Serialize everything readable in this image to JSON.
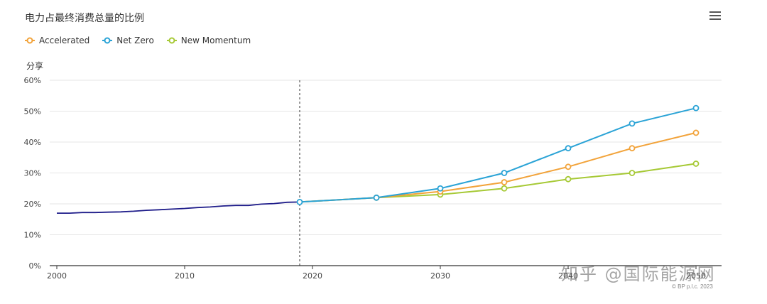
{
  "title": "电力占最终消费总量的比例",
  "y_unit_label": "分享",
  "menu_icon": "hamburger-menu-icon",
  "watermark": "知乎 @国际能源网",
  "copyright": "© BP p.l.c. 2023",
  "colors": {
    "historical": "#1f1d8a",
    "accelerated": "#f2a33a",
    "net_zero": "#2aa3d6",
    "new_momentum": "#a6c935",
    "grid": "#e6e6e6",
    "axis": "#333333"
  },
  "chart_data": {
    "type": "line",
    "title": "电力占最终消费总量的比例",
    "ylabel": "分享",
    "xlabel": "",
    "xlim": [
      2000,
      2052
    ],
    "ylim": [
      0,
      60
    ],
    "x_ticks": [
      "2000",
      "2010",
      "2020",
      "2030",
      "2040",
      "2050"
    ],
    "y_ticks": [
      "0%",
      "10%",
      "20%",
      "30%",
      "40%",
      "50%",
      "60%"
    ],
    "y_tick_values": [
      0,
      10,
      20,
      30,
      40,
      50,
      60
    ],
    "x_tick_values": [
      2000,
      2010,
      2020,
      2030,
      2040,
      2050
    ],
    "grid": true,
    "legend_position": "top-left",
    "divider_year": 2019,
    "historical": {
      "x": [
        2000,
        2001,
        2002,
        2003,
        2004,
        2005,
        2006,
        2007,
        2008,
        2009,
        2010,
        2011,
        2012,
        2013,
        2014,
        2015,
        2016,
        2017,
        2018,
        2019
      ],
      "values": [
        17.0,
        17.0,
        17.2,
        17.2,
        17.3,
        17.4,
        17.6,
        17.9,
        18.1,
        18.3,
        18.5,
        18.8,
        19.0,
        19.3,
        19.5,
        19.5,
        19.9,
        20.1,
        20.5,
        20.6
      ]
    },
    "series": [
      {
        "name": "Accelerated",
        "key": "accelerated",
        "x": [
          2019,
          2025,
          2030,
          2035,
          2040,
          2045,
          2050
        ],
        "values": [
          20.6,
          22,
          24,
          27,
          32,
          38,
          43
        ]
      },
      {
        "name": "Net Zero",
        "key": "net_zero",
        "x": [
          2019,
          2025,
          2030,
          2035,
          2040,
          2045,
          2050
        ],
        "values": [
          20.6,
          22,
          25,
          30,
          38,
          46,
          51
        ]
      },
      {
        "name": "New Momentum",
        "key": "new_momentum",
        "x": [
          2019,
          2025,
          2030,
          2035,
          2040,
          2045,
          2050
        ],
        "values": [
          20.6,
          22,
          23,
          25,
          28,
          30,
          33
        ]
      }
    ]
  }
}
